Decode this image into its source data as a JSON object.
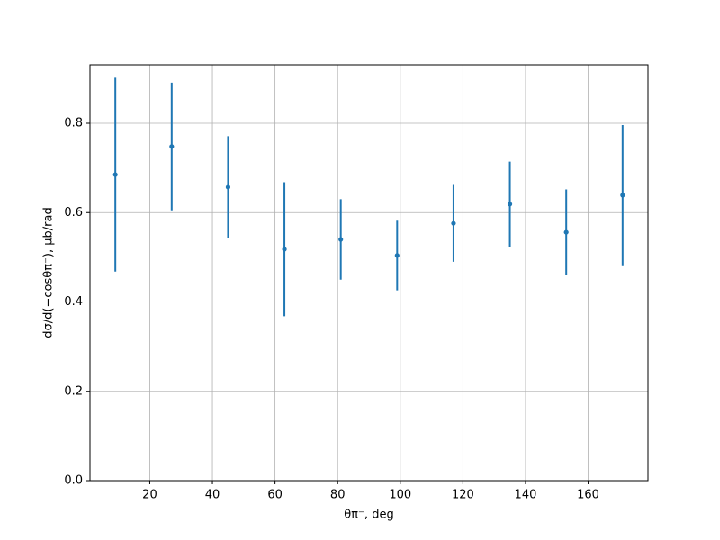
{
  "chart_data": {
    "type": "errorbar",
    "xlabel": "θπ⁻, deg",
    "ylabel": "dσ/d(−cosθπ⁻), μb/rad",
    "x": [
      9,
      27,
      45,
      63,
      81,
      99,
      117,
      135,
      153,
      171
    ],
    "series": [
      {
        "color": "#1f77b4",
        "values": [
          0.685,
          0.748,
          0.657,
          0.518,
          0.54,
          0.504,
          0.576,
          0.619,
          0.556,
          0.639
        ],
        "errors": [
          0.217,
          0.143,
          0.114,
          0.15,
          0.09,
          0.078,
          0.086,
          0.095,
          0.096,
          0.157
        ]
      }
    ],
    "xlim": [
      0.9,
      179.1
    ],
    "ylim": [
      0,
      0.931
    ],
    "xticks": [
      20,
      40,
      60,
      80,
      100,
      120,
      140,
      160
    ],
    "yticks": [
      {
        "value": 0,
        "label": "0.0"
      },
      0.2,
      0.4,
      0.6,
      0.8
    ],
    "grid": true
  }
}
